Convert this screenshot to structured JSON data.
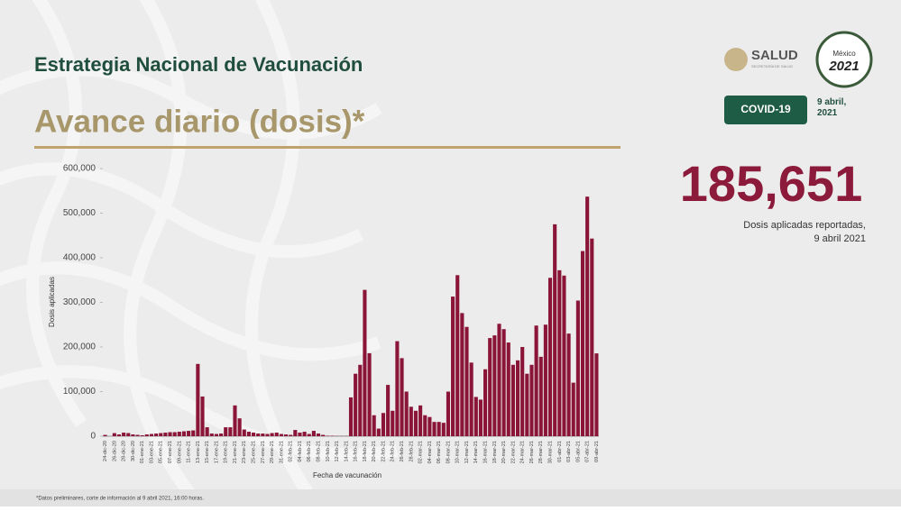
{
  "header": {
    "title": "Estrategia Nacional de Vacunación",
    "subtitle": "Avance diario (dosis)*",
    "logo_text": "SALUD",
    "logo_subtext": "SECRETARÍA DE SALUD",
    "badge": "COVID-19",
    "date": "9 abril, 2021",
    "emblem_top": "México",
    "emblem_year": "2021"
  },
  "highlight": {
    "value": "185,651",
    "caption_line1": "Dosis aplicadas reportadas,",
    "caption_line2": "9 abril 2021"
  },
  "footnote": "*Datos preliminares, corte de información al 9 abril 2021, 16:00 horas.",
  "chart_data": {
    "type": "bar",
    "x_label": "Fecha de vacunación",
    "y_label": "Dosis aplicadas",
    "color": "#8a1538",
    "ylim": [
      0,
      600000
    ],
    "yticks": [
      0,
      {
        "value": 100000,
        "label": "100,000"
      },
      {
        "value": 200000,
        "label": "200,000"
      },
      {
        "value": 300000,
        "label": "300,000"
      },
      {
        "value": 400000,
        "label": "400,000"
      },
      {
        "value": 500000,
        "label": "500,000"
      },
      {
        "value": 600000,
        "label": "600,000"
      }
    ],
    "categories": [
      "24-dic-20",
      null,
      "26-dic-20",
      null,
      "28-dic-20",
      null,
      "30-dic-20",
      null,
      "01-ene-21",
      null,
      "03-ene-21",
      null,
      "05-ene-21",
      null,
      "07-ene-21",
      null,
      "09-ene-21",
      null,
      "11-ene-21",
      null,
      "13-ene-21",
      null,
      "15-ene-21",
      null,
      "17-ene-21",
      null,
      "19-ene-21",
      null,
      "21-ene-21",
      null,
      "23-ene-21",
      null,
      "25-ene-21",
      null,
      "27-ene-21",
      null,
      "29-ene-21",
      null,
      "31-ene-21",
      null,
      "02-feb-21",
      null,
      "04-feb-21",
      null,
      "06-feb-21",
      null,
      "08-feb-21",
      null,
      "10-feb-21",
      null,
      "12-feb-21",
      null,
      "14-feb-21",
      null,
      "16-feb-21",
      null,
      "18-feb-21",
      null,
      "20-feb-21",
      null,
      "22-feb-21",
      null,
      "24-feb-21",
      null,
      "26-feb-21",
      null,
      "28-feb-21",
      null,
      "02-mar-21",
      null,
      "04-mar-21",
      null,
      "06-mar-21",
      null,
      "08-mar-21",
      null,
      "10-mar-21",
      null,
      "12-mar-21",
      null,
      "14-mar-21",
      null,
      "16-mar-21",
      null,
      "18-mar-21",
      null,
      "20-mar-21",
      null,
      "22-mar-21",
      null,
      "24-mar-21",
      null,
      "26-mar-21",
      null,
      "28-mar-21",
      null,
      "30-mar-21",
      null,
      "01-abr-21",
      null,
      "03-abr-21",
      null,
      "05-abr-21",
      null,
      "07-abr-21",
      null,
      "09-abr-21"
    ],
    "values": [
      2924,
      0,
      6897,
      4000,
      8000,
      7000,
      4000,
      3000,
      2000,
      4000,
      5000,
      6000,
      7000,
      8000,
      9000,
      9000,
      10000,
      11000,
      12000,
      13000,
      162000,
      89000,
      20000,
      6000,
      5000,
      6000,
      20000,
      20000,
      69000,
      40000,
      15000,
      10000,
      8000,
      6000,
      6000,
      5000,
      7000,
      8000,
      5000,
      4000,
      3000,
      14000,
      8000,
      10000,
      5000,
      12000,
      6000,
      3000,
      1000,
      1000,
      500,
      500,
      500,
      87000,
      140000,
      160000,
      328000,
      186000,
      47000,
      17000,
      52000,
      115000,
      57000,
      213000,
      175000,
      100000,
      66000,
      57000,
      69000,
      47000,
      43000,
      32000,
      32000,
      30000,
      100000,
      313000,
      361000,
      276000,
      245000,
      165000,
      88000,
      82000,
      150000,
      220000,
      226000,
      252000,
      240000,
      210000,
      160000,
      170000,
      200000,
      140000,
      160000,
      248000,
      178000,
      250000,
      355000,
      475000,
      372000,
      360000,
      230000,
      120000,
      304000,
      415000,
      537000,
      443000,
      185651
    ]
  }
}
